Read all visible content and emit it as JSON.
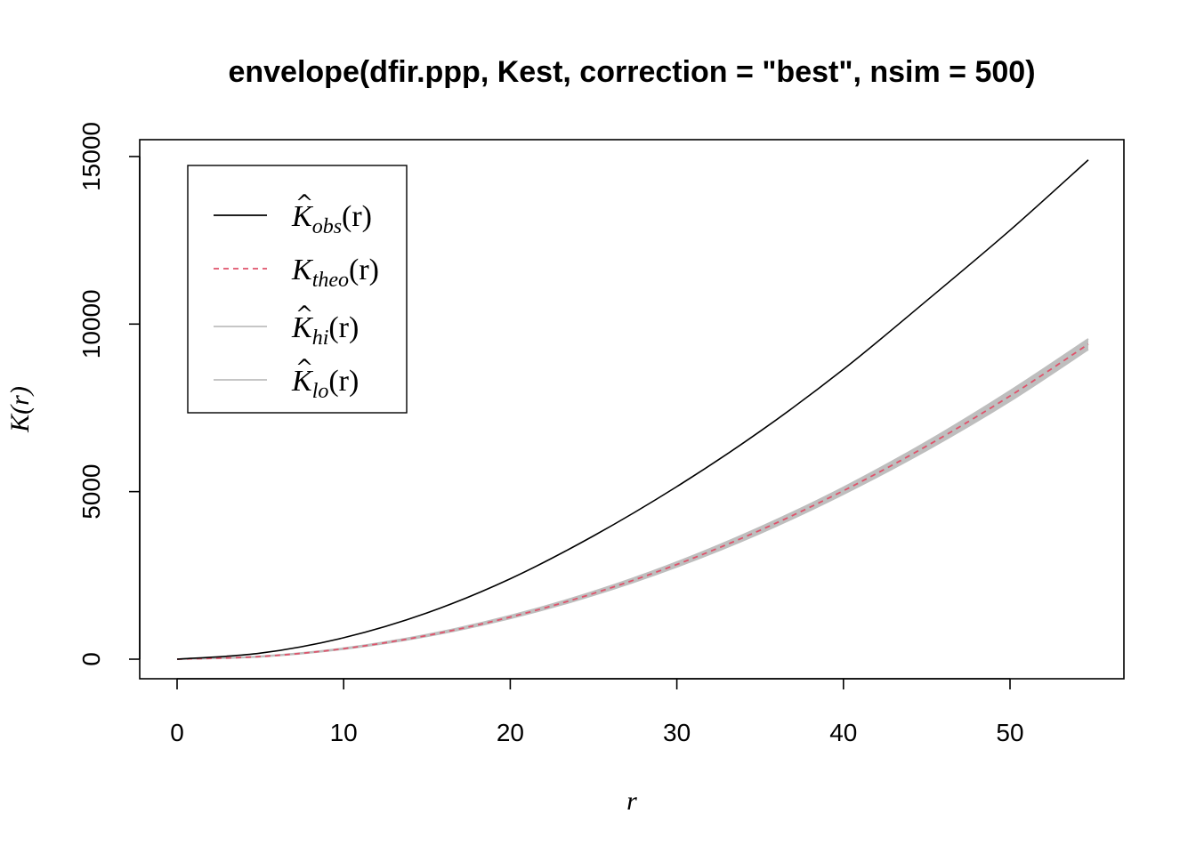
{
  "chart_data": {
    "type": "line",
    "title": "envelope(dfir.ppp, Kest, correction = \"best\", nsim = 500)",
    "xlabel": "r",
    "ylabel": "K(r)",
    "xlim": [
      0,
      55
    ],
    "ylim": [
      0,
      15000
    ],
    "x_ticks": [
      "0",
      "10",
      "20",
      "30",
      "40",
      "50"
    ],
    "y_ticks": [
      "0",
      "5000",
      "10000",
      "15000"
    ],
    "legend_position": "top-left",
    "series": [
      {
        "name": "K̂_obs(r)",
        "label_base": "K",
        "hat": true,
        "subscript": "obs",
        "arg": "(r)",
        "color": "#000000",
        "dash": "solid",
        "x": [
          0,
          5,
          10,
          15,
          20,
          25,
          30,
          35,
          40,
          45,
          50,
          54.7
        ],
        "y": [
          0,
          180,
          640,
          1380,
          2400,
          3680,
          5150,
          6800,
          8650,
          10700,
          12800,
          14900
        ]
      },
      {
        "name": "K_theo(r)",
        "label_base": "K",
        "hat": false,
        "subscript": "theo",
        "arg": "(r)",
        "color": "#df536b",
        "dash": "dashed",
        "x": [
          0,
          5,
          10,
          15,
          20,
          25,
          30,
          35,
          40,
          45,
          50,
          54.7
        ],
        "y": [
          0,
          79,
          314,
          707,
          1257,
          1963,
          2827,
          3848,
          5027,
          6362,
          7854,
          9400
        ]
      },
      {
        "name": "K̂_hi(r)",
        "label_base": "K",
        "hat": true,
        "subscript": "hi",
        "arg": "(r)",
        "color": "#bebebe",
        "dash": "solid",
        "x": [
          0,
          5,
          10,
          15,
          20,
          25,
          30,
          35,
          40,
          45,
          50,
          54.7
        ],
        "y": [
          0,
          88,
          330,
          735,
          1300,
          2020,
          2900,
          3940,
          5130,
          6490,
          8010,
          9560
        ]
      },
      {
        "name": "K̂_lo(r)",
        "label_base": "K",
        "hat": true,
        "subscript": "lo",
        "arg": "(r)",
        "color": "#bebebe",
        "dash": "solid",
        "x": [
          0,
          5,
          10,
          15,
          20,
          25,
          30,
          35,
          40,
          45,
          50,
          54.7
        ],
        "y": [
          0,
          70,
          298,
          680,
          1214,
          1906,
          2754,
          3756,
          4924,
          6234,
          7698,
          9240
        ]
      }
    ]
  }
}
